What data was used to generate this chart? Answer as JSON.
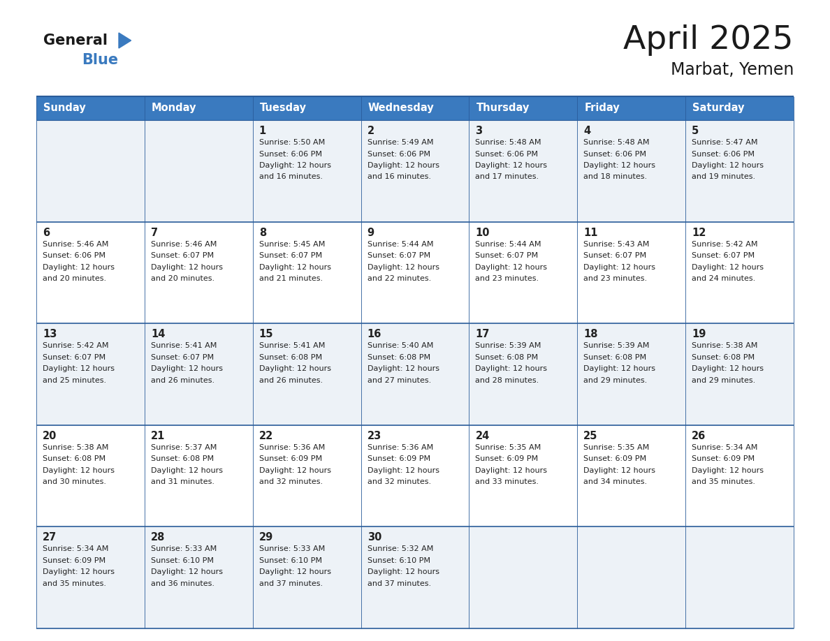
{
  "title": "April 2025",
  "subtitle": "Marbat, Yemen",
  "header_bg": "#3a7abf",
  "header_text_color": "#ffffff",
  "days_of_week": [
    "Sunday",
    "Monday",
    "Tuesday",
    "Wednesday",
    "Thursday",
    "Friday",
    "Saturday"
  ],
  "row_bg_light": "#edf2f7",
  "row_bg_white": "#ffffff",
  "cell_border_color": "#2a5c9a",
  "text_color": "#222222",
  "days": [
    {
      "day": 1,
      "col": 2,
      "row": 0,
      "sunrise": "5:50 AM",
      "sunset": "6:06 PM",
      "daylight_hours": 12,
      "daylight_minutes": 16
    },
    {
      "day": 2,
      "col": 3,
      "row": 0,
      "sunrise": "5:49 AM",
      "sunset": "6:06 PM",
      "daylight_hours": 12,
      "daylight_minutes": 16
    },
    {
      "day": 3,
      "col": 4,
      "row": 0,
      "sunrise": "5:48 AM",
      "sunset": "6:06 PM",
      "daylight_hours": 12,
      "daylight_minutes": 17
    },
    {
      "day": 4,
      "col": 5,
      "row": 0,
      "sunrise": "5:48 AM",
      "sunset": "6:06 PM",
      "daylight_hours": 12,
      "daylight_minutes": 18
    },
    {
      "day": 5,
      "col": 6,
      "row": 0,
      "sunrise": "5:47 AM",
      "sunset": "6:06 PM",
      "daylight_hours": 12,
      "daylight_minutes": 19
    },
    {
      "day": 6,
      "col": 0,
      "row": 1,
      "sunrise": "5:46 AM",
      "sunset": "6:06 PM",
      "daylight_hours": 12,
      "daylight_minutes": 20
    },
    {
      "day": 7,
      "col": 1,
      "row": 1,
      "sunrise": "5:46 AM",
      "sunset": "6:07 PM",
      "daylight_hours": 12,
      "daylight_minutes": 20
    },
    {
      "day": 8,
      "col": 2,
      "row": 1,
      "sunrise": "5:45 AM",
      "sunset": "6:07 PM",
      "daylight_hours": 12,
      "daylight_minutes": 21
    },
    {
      "day": 9,
      "col": 3,
      "row": 1,
      "sunrise": "5:44 AM",
      "sunset": "6:07 PM",
      "daylight_hours": 12,
      "daylight_minutes": 22
    },
    {
      "day": 10,
      "col": 4,
      "row": 1,
      "sunrise": "5:44 AM",
      "sunset": "6:07 PM",
      "daylight_hours": 12,
      "daylight_minutes": 23
    },
    {
      "day": 11,
      "col": 5,
      "row": 1,
      "sunrise": "5:43 AM",
      "sunset": "6:07 PM",
      "daylight_hours": 12,
      "daylight_minutes": 23
    },
    {
      "day": 12,
      "col": 6,
      "row": 1,
      "sunrise": "5:42 AM",
      "sunset": "6:07 PM",
      "daylight_hours": 12,
      "daylight_minutes": 24
    },
    {
      "day": 13,
      "col": 0,
      "row": 2,
      "sunrise": "5:42 AM",
      "sunset": "6:07 PM",
      "daylight_hours": 12,
      "daylight_minutes": 25
    },
    {
      "day": 14,
      "col": 1,
      "row": 2,
      "sunrise": "5:41 AM",
      "sunset": "6:07 PM",
      "daylight_hours": 12,
      "daylight_minutes": 26
    },
    {
      "day": 15,
      "col": 2,
      "row": 2,
      "sunrise": "5:41 AM",
      "sunset": "6:08 PM",
      "daylight_hours": 12,
      "daylight_minutes": 26
    },
    {
      "day": 16,
      "col": 3,
      "row": 2,
      "sunrise": "5:40 AM",
      "sunset": "6:08 PM",
      "daylight_hours": 12,
      "daylight_minutes": 27
    },
    {
      "day": 17,
      "col": 4,
      "row": 2,
      "sunrise": "5:39 AM",
      "sunset": "6:08 PM",
      "daylight_hours": 12,
      "daylight_minutes": 28
    },
    {
      "day": 18,
      "col": 5,
      "row": 2,
      "sunrise": "5:39 AM",
      "sunset": "6:08 PM",
      "daylight_hours": 12,
      "daylight_minutes": 29
    },
    {
      "day": 19,
      "col": 6,
      "row": 2,
      "sunrise": "5:38 AM",
      "sunset": "6:08 PM",
      "daylight_hours": 12,
      "daylight_minutes": 29
    },
    {
      "day": 20,
      "col": 0,
      "row": 3,
      "sunrise": "5:38 AM",
      "sunset": "6:08 PM",
      "daylight_hours": 12,
      "daylight_minutes": 30
    },
    {
      "day": 21,
      "col": 1,
      "row": 3,
      "sunrise": "5:37 AM",
      "sunset": "6:08 PM",
      "daylight_hours": 12,
      "daylight_minutes": 31
    },
    {
      "day": 22,
      "col": 2,
      "row": 3,
      "sunrise": "5:36 AM",
      "sunset": "6:09 PM",
      "daylight_hours": 12,
      "daylight_minutes": 32
    },
    {
      "day": 23,
      "col": 3,
      "row": 3,
      "sunrise": "5:36 AM",
      "sunset": "6:09 PM",
      "daylight_hours": 12,
      "daylight_minutes": 32
    },
    {
      "day": 24,
      "col": 4,
      "row": 3,
      "sunrise": "5:35 AM",
      "sunset": "6:09 PM",
      "daylight_hours": 12,
      "daylight_minutes": 33
    },
    {
      "day": 25,
      "col": 5,
      "row": 3,
      "sunrise": "5:35 AM",
      "sunset": "6:09 PM",
      "daylight_hours": 12,
      "daylight_minutes": 34
    },
    {
      "day": 26,
      "col": 6,
      "row": 3,
      "sunrise": "5:34 AM",
      "sunset": "6:09 PM",
      "daylight_hours": 12,
      "daylight_minutes": 35
    },
    {
      "day": 27,
      "col": 0,
      "row": 4,
      "sunrise": "5:34 AM",
      "sunset": "6:09 PM",
      "daylight_hours": 12,
      "daylight_minutes": 35
    },
    {
      "day": 28,
      "col": 1,
      "row": 4,
      "sunrise": "5:33 AM",
      "sunset": "6:10 PM",
      "daylight_hours": 12,
      "daylight_minutes": 36
    },
    {
      "day": 29,
      "col": 2,
      "row": 4,
      "sunrise": "5:33 AM",
      "sunset": "6:10 PM",
      "daylight_hours": 12,
      "daylight_minutes": 37
    },
    {
      "day": 30,
      "col": 3,
      "row": 4,
      "sunrise": "5:32 AM",
      "sunset": "6:10 PM",
      "daylight_hours": 12,
      "daylight_minutes": 37
    }
  ],
  "num_rows": 5,
  "num_cols": 7
}
